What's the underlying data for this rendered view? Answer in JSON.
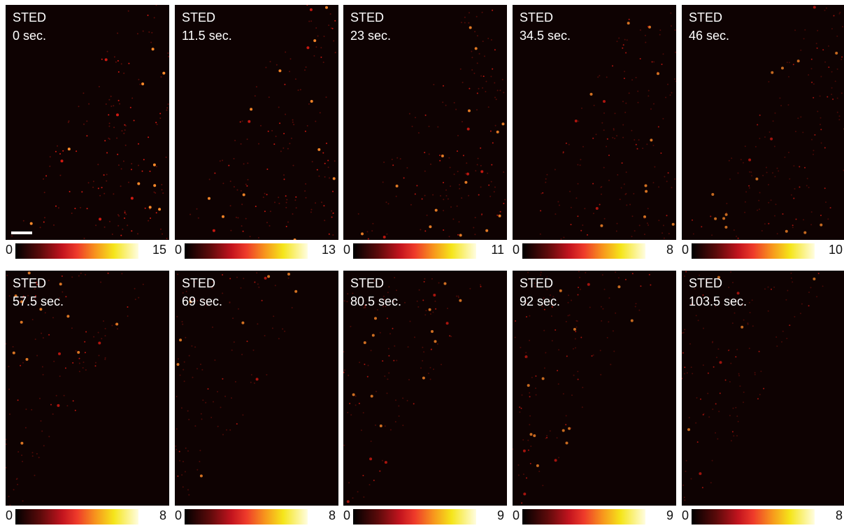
{
  "panels": [
    {
      "label": "STED",
      "time": "0 sec.",
      "colorbar": {
        "min": 0,
        "max": 15
      }
    },
    {
      "label": "STED",
      "time": "11.5 sec.",
      "colorbar": {
        "min": 0,
        "max": 13
      }
    },
    {
      "label": "STED",
      "time": "23 sec.",
      "colorbar": {
        "min": 0,
        "max": 11
      }
    },
    {
      "label": "STED",
      "time": "34.5 sec.",
      "colorbar": {
        "min": 0,
        "max": 8
      }
    },
    {
      "label": "STED",
      "time": "46 sec.",
      "colorbar": {
        "min": 0,
        "max": 10
      }
    },
    {
      "label": "STED",
      "time": "57.5 sec.",
      "colorbar": {
        "min": 0,
        "max": 8
      }
    },
    {
      "label": "STED",
      "time": "69 sec.",
      "colorbar": {
        "min": 0,
        "max": 8
      }
    },
    {
      "label": "STED",
      "time": "80.5 sec.",
      "colorbar": {
        "min": 0,
        "max": 9
      }
    },
    {
      "label": "STED",
      "time": "92 sec.",
      "colorbar": {
        "min": 0,
        "max": 9
      }
    },
    {
      "label": "STED",
      "time": "103.5 sec.",
      "colorbar": {
        "min": 0,
        "max": 8
      }
    }
  ]
}
